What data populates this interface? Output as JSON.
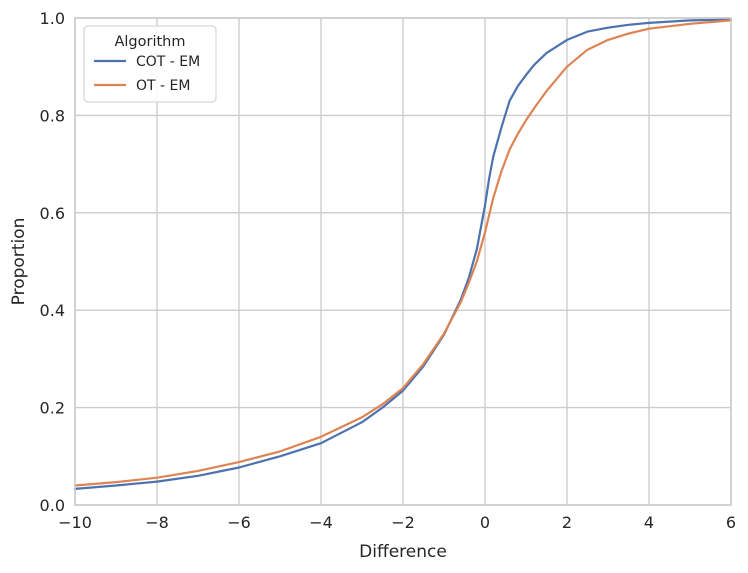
{
  "chart_data": {
    "type": "line",
    "title": "",
    "xlabel": "Difference",
    "ylabel": "Proportion",
    "xlim": [
      -10,
      6
    ],
    "ylim": [
      0,
      1
    ],
    "xticks": [
      -10,
      -8,
      -6,
      -4,
      -2,
      0,
      2,
      4,
      6
    ],
    "xtick_labels": [
      "−10",
      "−8",
      "−6",
      "−4",
      "−2",
      "0",
      "2",
      "4",
      "6"
    ],
    "yticks": [
      0,
      0.2,
      0.4,
      0.6,
      0.8,
      1.0
    ],
    "ytick_labels": [
      "0.0",
      "0.2",
      "0.4",
      "0.6",
      "0.8",
      "1.0"
    ],
    "grid": true,
    "legend": {
      "title": "Algorithm",
      "placement": "top-left"
    },
    "series": [
      {
        "name": "COT - EM",
        "color": "#4c72b0",
        "x": [
          -10,
          -9,
          -8,
          -7,
          -6,
          -5,
          -4,
          -3,
          -2.5,
          -2,
          -1.5,
          -1,
          -0.6,
          -0.4,
          -0.2,
          0,
          0.1,
          0.2,
          0.4,
          0.6,
          0.8,
          1,
          1.2,
          1.5,
          2,
          2.5,
          3,
          3.5,
          4,
          5,
          6
        ],
        "y": [
          0.033,
          0.04,
          0.048,
          0.06,
          0.077,
          0.1,
          0.127,
          0.17,
          0.2,
          0.235,
          0.285,
          0.35,
          0.42,
          0.465,
          0.525,
          0.615,
          0.67,
          0.715,
          0.775,
          0.83,
          0.86,
          0.883,
          0.904,
          0.928,
          0.955,
          0.972,
          0.98,
          0.986,
          0.99,
          0.995,
          0.997
        ]
      },
      {
        "name": "OT - EM",
        "color": "#dd8452",
        "x": [
          -10,
          -9,
          -8,
          -7,
          -6,
          -5,
          -4,
          -3,
          -2.5,
          -2,
          -1.5,
          -1,
          -0.6,
          -0.4,
          -0.2,
          0,
          0.1,
          0.2,
          0.4,
          0.6,
          0.8,
          1,
          1.2,
          1.5,
          2,
          2.5,
          3,
          3.5,
          4,
          5,
          6
        ],
        "y": [
          0.04,
          0.047,
          0.056,
          0.07,
          0.088,
          0.11,
          0.14,
          0.18,
          0.207,
          0.24,
          0.29,
          0.352,
          0.415,
          0.455,
          0.5,
          0.56,
          0.595,
          0.63,
          0.685,
          0.73,
          0.762,
          0.79,
          0.815,
          0.85,
          0.9,
          0.935,
          0.955,
          0.968,
          0.978,
          0.988,
          0.995
        ]
      }
    ]
  }
}
